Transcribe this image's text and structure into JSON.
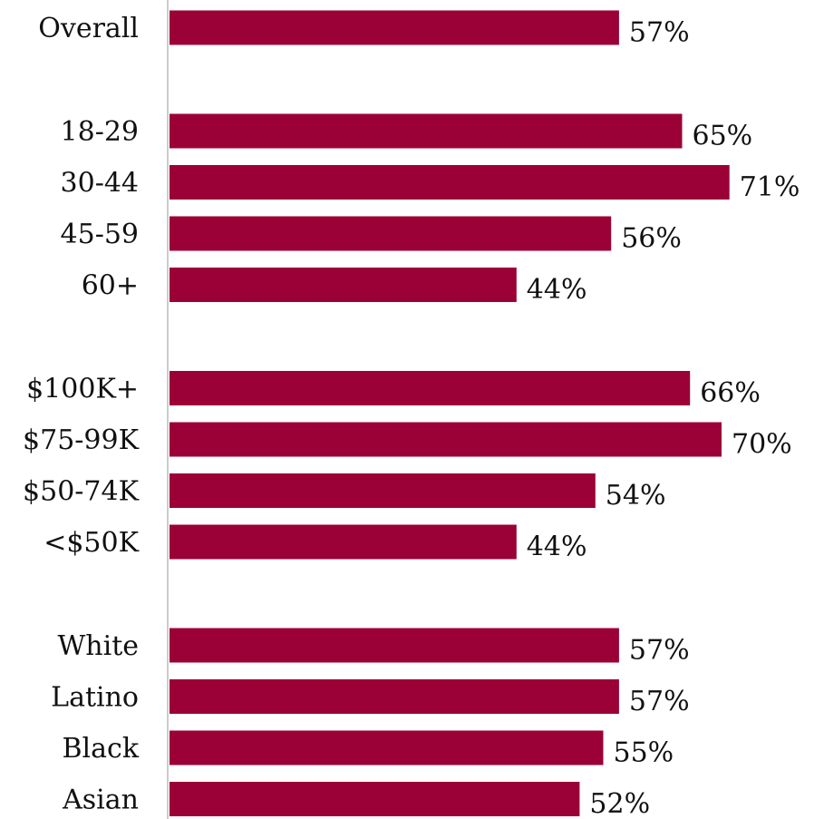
{
  "chart_data": {
    "type": "bar",
    "orientation": "horizontal",
    "categories": [
      "Overall",
      "18-29",
      "30-44",
      "45-59",
      "60+",
      "$100K+",
      "$75-99K",
      "$50-74K",
      "<$50K",
      "White",
      "Latino",
      "Black",
      "Asian"
    ],
    "values": [
      57,
      65,
      71,
      56,
      44,
      66,
      70,
      54,
      44,
      57,
      57,
      55,
      52
    ],
    "value_labels": [
      "57%",
      "65%",
      "71%",
      "56%",
      "44%",
      "66%",
      "70%",
      "54%",
      "44%",
      "57%",
      "57%",
      "55%",
      "52%"
    ],
    "groups": [
      [
        "Overall"
      ],
      [
        "18-29",
        "30-44",
        "45-59",
        "60+"
      ],
      [
        "$100K+",
        "$75-99K",
        "$50-74K",
        "<$50K"
      ],
      [
        "White",
        "Latino",
        "Black",
        "Asian"
      ]
    ],
    "title": "",
    "xlabel": "",
    "ylabel": "",
    "grid": false,
    "legend": "none",
    "bar_color": "#9b0036",
    "axis_color": "#cccccc"
  }
}
